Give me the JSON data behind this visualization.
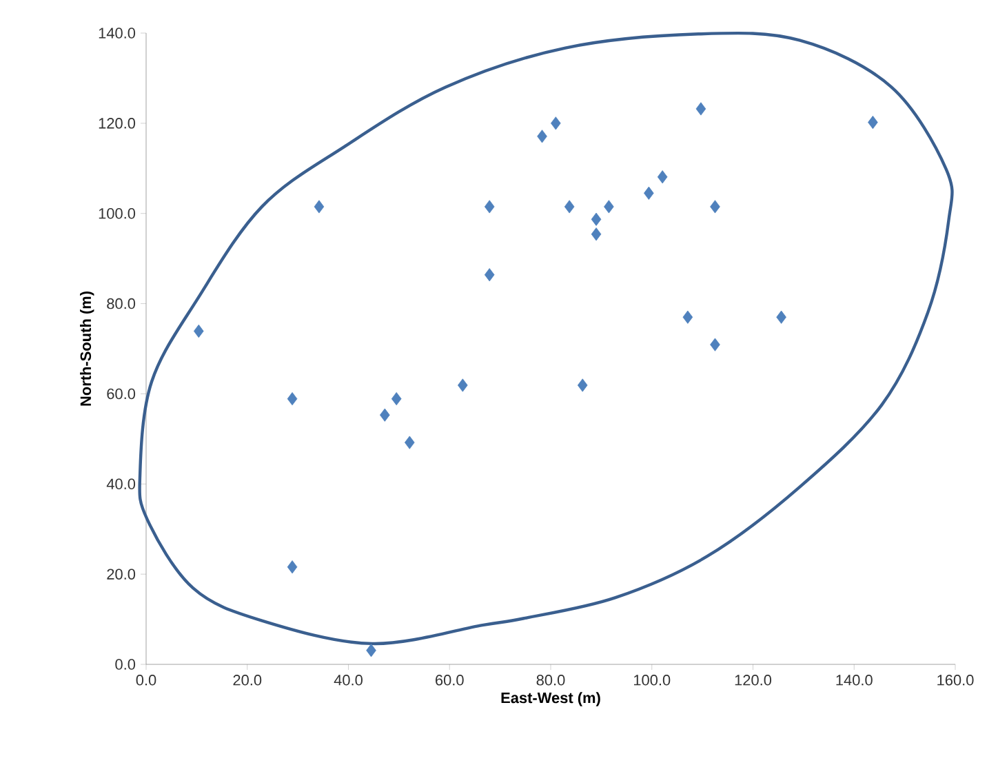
{
  "chart_data": {
    "type": "scatter",
    "xlabel": "East-West (m)",
    "ylabel": "North-South (m)",
    "xlim": [
      0,
      160
    ],
    "ylim": [
      0,
      140
    ],
    "xticks": [
      {
        "value": 0,
        "label": "0.0"
      },
      {
        "value": 20,
        "label": "20.0"
      },
      {
        "value": 40,
        "label": "40.0"
      },
      {
        "value": 60,
        "label": "60.0"
      },
      {
        "value": 80,
        "label": "80.0"
      },
      {
        "value": 100,
        "label": "100.0"
      },
      {
        "value": 120,
        "label": "120.0"
      },
      {
        "value": 140,
        "label": "140.0"
      },
      {
        "value": 160,
        "label": "160.0"
      }
    ],
    "yticks": [
      {
        "value": 0,
        "label": "0.0"
      },
      {
        "value": 20,
        "label": "20.0"
      },
      {
        "value": 40,
        "label": "40.0"
      },
      {
        "value": 60,
        "label": "60.0"
      },
      {
        "value": 80,
        "label": "80.0"
      },
      {
        "value": 100,
        "label": "100.0"
      },
      {
        "value": 120,
        "label": "120.0"
      },
      {
        "value": 140,
        "label": "140.0"
      }
    ],
    "grid": false,
    "series": [
      {
        "marker": "diamond",
        "color": "#4f81bd",
        "x": [
          10.4,
          28.9,
          34.2,
          28.9,
          44.5,
          47.2,
          49.5,
          52.1,
          62.6,
          67.9,
          67.9,
          78.3,
          81.0,
          83.7,
          89.0,
          89.0,
          91.5,
          99.4,
          102.1,
          109.7,
          112.5,
          86.3,
          107.1,
          112.5,
          125.6,
          143.7
        ],
        "values": [
          73.9,
          58.9,
          101.5,
          21.6,
          3.1,
          55.3,
          58.9,
          49.2,
          61.9,
          101.5,
          86.4,
          117.1,
          120.0,
          101.5,
          98.7,
          95.4,
          101.5,
          104.5,
          108.1,
          123.2,
          101.5,
          61.9,
          77.0,
          70.9,
          77.0,
          120.2
        ]
      }
    ]
  }
}
